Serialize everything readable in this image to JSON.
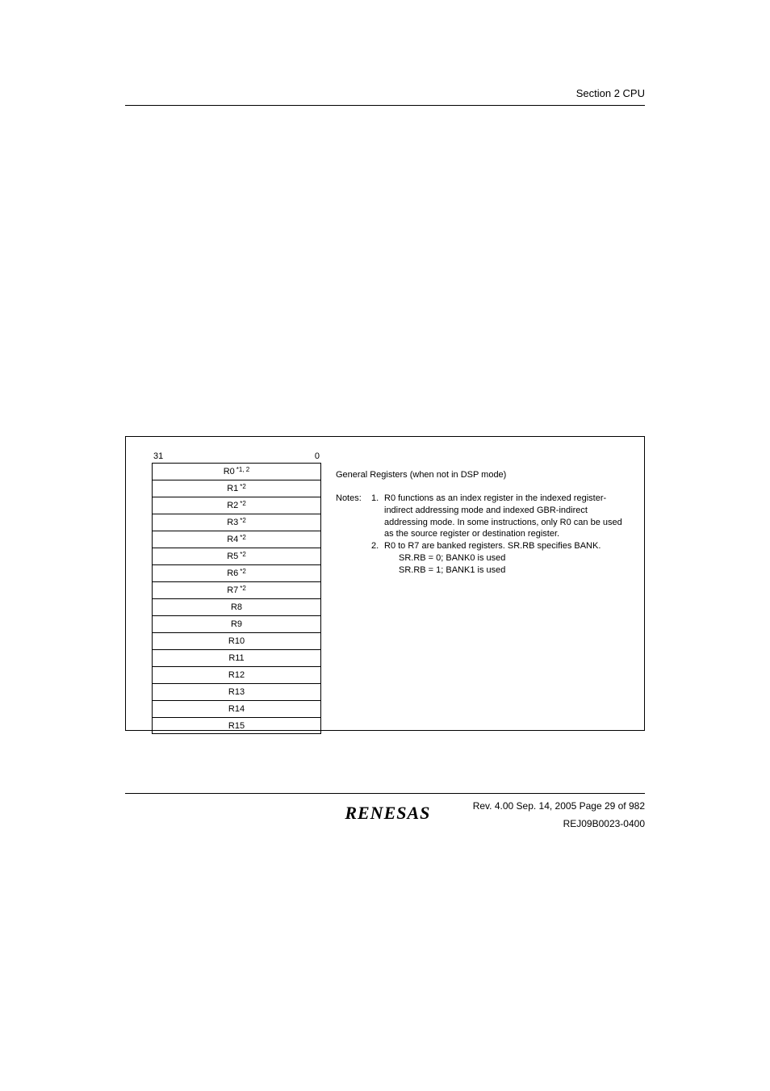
{
  "header": {
    "section_label": "Section 2   CPU"
  },
  "figure": {
    "bit_high": "31",
    "bit_low": "0",
    "registers": [
      {
        "name": "R0",
        "sup": "1,  2"
      },
      {
        "name": "R1",
        "sup": "2"
      },
      {
        "name": "R2",
        "sup": "2"
      },
      {
        "name": "R3",
        "sup": "2"
      },
      {
        "name": "R4",
        "sup": "2"
      },
      {
        "name": "R5",
        "sup": "2"
      },
      {
        "name": "R6",
        "sup": "2"
      },
      {
        "name": "R7",
        "sup": "2"
      },
      {
        "name": "R8",
        "sup": ""
      },
      {
        "name": "R9",
        "sup": ""
      },
      {
        "name": "R10",
        "sup": ""
      },
      {
        "name": "R11",
        "sup": ""
      },
      {
        "name": "R12",
        "sup": ""
      },
      {
        "name": "R13",
        "sup": ""
      },
      {
        "name": "R14",
        "sup": ""
      },
      {
        "name": "R15",
        "sup": ""
      }
    ],
    "desc_title": "General Registers (when not in DSP mode)",
    "notes_label": "Notes:",
    "note1_num": "1.",
    "note1_text": "R0 functions as an index register in the indexed register-indirect addressing mode and indexed GBR-indirect addressing mode. In some instructions, only R0 can be used as the source register or destination register.",
    "note2_num": "2.",
    "note2_text": "R0 to R7 are banked registers. SR.RB specifies BANK.",
    "note2_sub1": "SR.RB = 0; BANK0 is used",
    "note2_sub2": "SR.RB = 1; BANK1 is used"
  },
  "footer": {
    "logo_text": "RENESAS",
    "rev_line": "Rev. 4.00  Sep. 14, 2005  Page 29 of 982",
    "doc_id": "REJ09B0023-0400"
  }
}
